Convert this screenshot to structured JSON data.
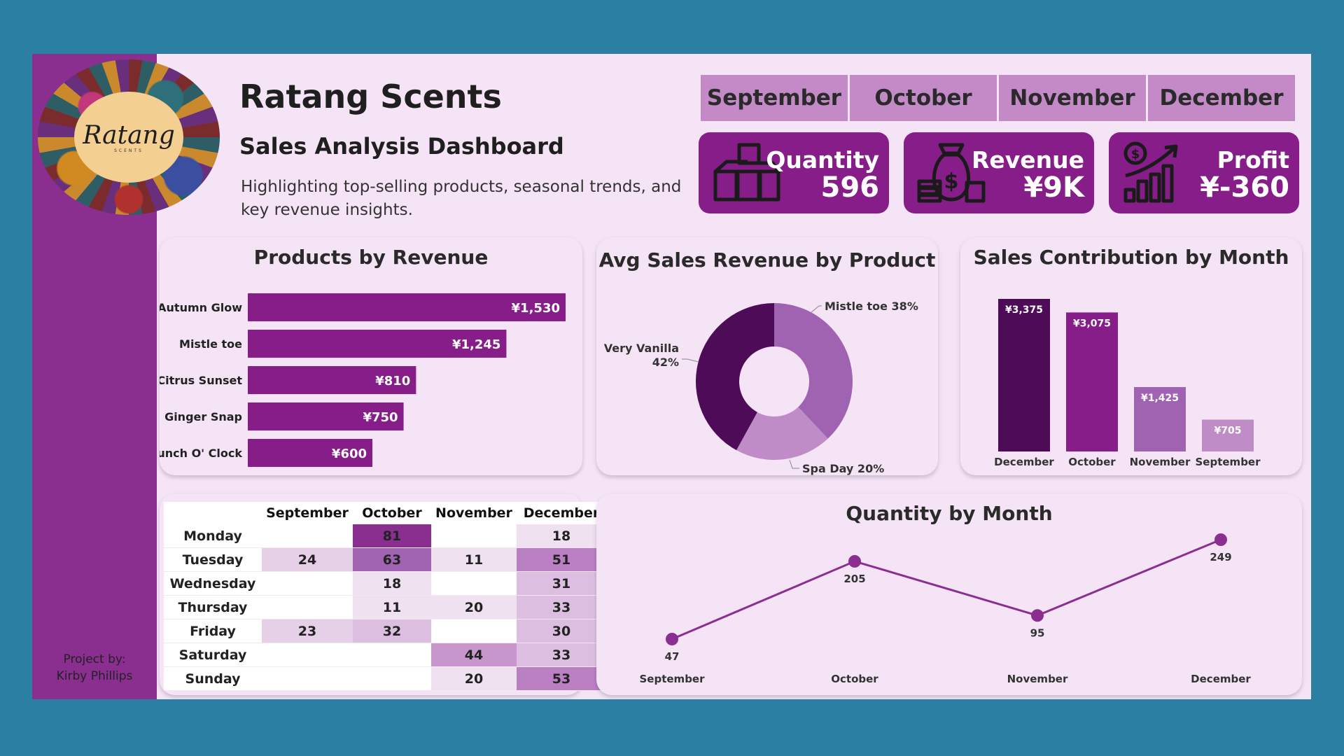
{
  "brand": {
    "logo_text": "Ratang",
    "logo_subtext": "SCENTS",
    "title": "Ratang Scents",
    "subtitle": "Sales Analysis Dashboard",
    "description": "Highlighting top-selling products, seasonal trends, and key revenue insights.",
    "credit_line1": "Project by:",
    "credit_line2": "Kirby Phillips"
  },
  "month_filter": [
    "September",
    "October",
    "November",
    "December"
  ],
  "kpis": {
    "quantity": {
      "label": "Quantity",
      "value": "596",
      "icon": "boxes-icon"
    },
    "revenue": {
      "label": "Revenue",
      "value": "¥9K",
      "icon": "money-bag-icon"
    },
    "profit": {
      "label": "Profit",
      "value": "¥-360",
      "icon": "growth-chart-icon"
    }
  },
  "panels": {
    "products_by_revenue": "Products by Revenue",
    "avg_sales_revenue": "Avg Sales Revenue by Product",
    "sales_contribution": "Sales Contribution by Month",
    "quantity_by_month": "Quantity by Month"
  },
  "colors": {
    "primary": "#861d89",
    "dark": "#4e0b57",
    "mid": "#a063b1",
    "light": "#c08cc7",
    "background": "#f5e3f6",
    "frame": "#2b7fa3"
  },
  "chart_data": [
    {
      "id": "products_by_revenue",
      "type": "bar",
      "orientation": "horizontal",
      "title": "Products by Revenue",
      "categories": [
        "Autumn Glow",
        "Mistle toe",
        "Citrus Sunset",
        "Ginger Snap",
        "Brunch O' Clock"
      ],
      "values": [
        1530,
        1245,
        810,
        750,
        600
      ],
      "labels": [
        "¥1,530",
        "¥1,245",
        "¥810",
        "¥750",
        "¥600"
      ],
      "xlim": [
        0,
        1530
      ]
    },
    {
      "id": "avg_sales_revenue",
      "type": "pie",
      "donut": true,
      "title": "Avg Sales Revenue by Product",
      "slices": [
        {
          "name": "Mistle toe",
          "value": 38,
          "label": "Mistle toe 38%",
          "color": "#a063b1"
        },
        {
          "name": "Spa Day",
          "value": 20,
          "label": "Spa Day 20%",
          "color": "#c08cc7"
        },
        {
          "name": "Very Vanilla",
          "value": 42,
          "label_line1": "Very Vanilla",
          "label_line2": "42%",
          "color": "#4e0b57"
        }
      ]
    },
    {
      "id": "sales_contribution",
      "type": "bar",
      "title": "Sales Contribution by Month",
      "categories": [
        "December",
        "October",
        "November",
        "September"
      ],
      "values": [
        3375,
        3075,
        1425,
        705
      ],
      "labels": [
        "¥3,375",
        "¥3,075",
        "¥1,425",
        "¥705"
      ],
      "colors": [
        "#4e0b57",
        "#861d89",
        "#a063b1",
        "#c08cc7"
      ],
      "ylim": [
        0,
        3375
      ]
    },
    {
      "id": "quantity_by_month",
      "type": "line",
      "title": "Quantity by Month",
      "categories": [
        "September",
        "October",
        "November",
        "December"
      ],
      "values": [
        47,
        205,
        95,
        249
      ],
      "ylim": [
        47,
        249
      ]
    },
    {
      "id": "weekday_matrix",
      "type": "table",
      "columns": [
        "September",
        "October",
        "November",
        "December"
      ],
      "rows": [
        {
          "day": "Monday",
          "values": [
            "",
            "81",
            "",
            "18"
          ]
        },
        {
          "day": "Tuesday",
          "values": [
            "24",
            "63",
            "11",
            "51"
          ]
        },
        {
          "day": "Wednesday",
          "values": [
            "",
            "18",
            "",
            "31"
          ]
        },
        {
          "day": "Thursday",
          "values": [
            "",
            "11",
            "20",
            "33"
          ]
        },
        {
          "day": "Friday",
          "values": [
            "23",
            "32",
            "",
            "30"
          ]
        },
        {
          "day": "Saturday",
          "values": [
            "",
            "",
            "44",
            "33"
          ]
        },
        {
          "day": "Sunday",
          "values": [
            "",
            "",
            "20",
            "53"
          ]
        }
      ],
      "max": 81
    }
  ]
}
